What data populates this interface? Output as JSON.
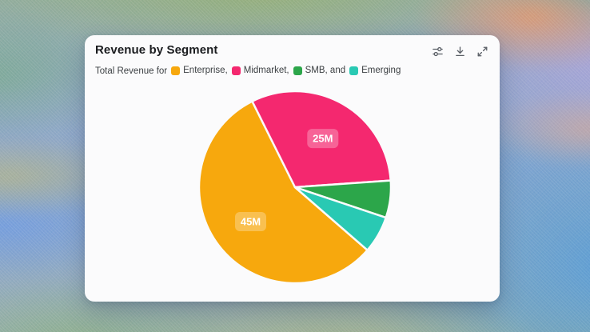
{
  "card": {
    "title": "Revenue by Segment",
    "toolbar": {
      "buttons": [
        {
          "icon": "sliders-icon"
        },
        {
          "icon": "download-icon"
        },
        {
          "icon": "expand-icon"
        }
      ]
    }
  },
  "legend": {
    "prefix": "Total Revenue for",
    "items": [
      {
        "label": "Enterprise",
        "suffix": ","
      },
      {
        "label": "Midmarket",
        "suffix": ","
      },
      {
        "label": "SMB",
        "suffix": ", and"
      },
      {
        "label": "Emerging",
        "suffix": ""
      }
    ]
  },
  "chart_data": {
    "type": "pie",
    "title": "Revenue by Segment",
    "unit": "M",
    "start_angle_deg": 41,
    "direction": "clockwise",
    "legend_position": "top-sentence",
    "segments": [
      {
        "name": "Enterprise",
        "value": 45,
        "label": "45M",
        "color": "#F7A80D"
      },
      {
        "name": "Midmarket",
        "value": 25,
        "label": "25M",
        "color": "#F4286F"
      },
      {
        "name": "SMB",
        "value": 5,
        "label": null,
        "color": "#2CA64A"
      },
      {
        "name": "Emerging",
        "value": 5,
        "label": null,
        "color": "#29C9B3"
      }
    ]
  }
}
